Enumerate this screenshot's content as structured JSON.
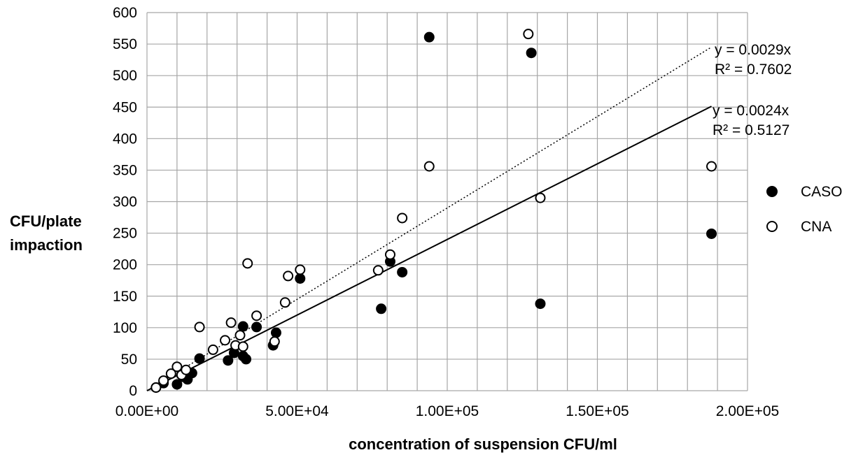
{
  "chart_data": {
    "type": "scatter",
    "xlabel": "concentration of suspension CFU/ml",
    "ylabel_lines": [
      "CFU/plate",
      "impaction"
    ],
    "xlim": [
      0,
      200000
    ],
    "ylim": [
      0,
      600
    ],
    "x_major_tick_step": 50000,
    "x_minor_grid_step": 10000,
    "y_tick_step": 50,
    "x_tick_labels": [
      "0.00E+00",
      "5.00E+04",
      "1.00E+05",
      "1.50E+05",
      "2.00E+05"
    ],
    "y_tick_labels": [
      "0",
      "50",
      "100",
      "150",
      "200",
      "250",
      "300",
      "350",
      "400",
      "450",
      "500",
      "550",
      "600"
    ],
    "grid": true,
    "legend_position": "right",
    "series": [
      {
        "name": "CASO",
        "marker": "filled-circle",
        "color": "#000000",
        "points": [
          [
            3000,
            5
          ],
          [
            5500,
            12
          ],
          [
            10000,
            10
          ],
          [
            12000,
            22
          ],
          [
            13500,
            18
          ],
          [
            15000,
            28
          ],
          [
            17500,
            51
          ],
          [
            27000,
            48
          ],
          [
            29000,
            60
          ],
          [
            32000,
            55
          ],
          [
            33000,
            50
          ],
          [
            32000,
            102
          ],
          [
            36500,
            101
          ],
          [
            42000,
            72
          ],
          [
            43000,
            92
          ],
          [
            51000,
            178
          ],
          [
            78000,
            130
          ],
          [
            81000,
            205
          ],
          [
            85000,
            188
          ],
          [
            94000,
            561
          ],
          [
            128000,
            536
          ],
          [
            131000,
            138
          ],
          [
            188000,
            249
          ]
        ],
        "trendline": {
          "slope": 0.0024,
          "x_end": 188000,
          "style": "solid",
          "equation": "y = 0.0024x",
          "r2": "R² = 0.5127"
        }
      },
      {
        "name": "CNA",
        "marker": "open-circle",
        "color": "#000000",
        "points": [
          [
            3000,
            5
          ],
          [
            5500,
            16
          ],
          [
            8000,
            27
          ],
          [
            10000,
            38
          ],
          [
            11500,
            25
          ],
          [
            13000,
            33
          ],
          [
            17500,
            101
          ],
          [
            22000,
            65
          ],
          [
            26000,
            80
          ],
          [
            28000,
            108
          ],
          [
            29500,
            72
          ],
          [
            31000,
            88
          ],
          [
            32000,
            70
          ],
          [
            33500,
            202
          ],
          [
            36500,
            119
          ],
          [
            42500,
            78
          ],
          [
            46000,
            140
          ],
          [
            47000,
            182
          ],
          [
            51000,
            192
          ],
          [
            77000,
            191
          ],
          [
            81000,
            216
          ],
          [
            85000,
            274
          ],
          [
            94000,
            356
          ],
          [
            127000,
            566
          ],
          [
            131000,
            306
          ],
          [
            188000,
            356
          ]
        ],
        "trendline": {
          "slope": 0.0029,
          "x_end": 188000,
          "style": "dotted",
          "equation": "y = 0.0029x",
          "r2": "R² = 0.7602"
        }
      }
    ]
  }
}
